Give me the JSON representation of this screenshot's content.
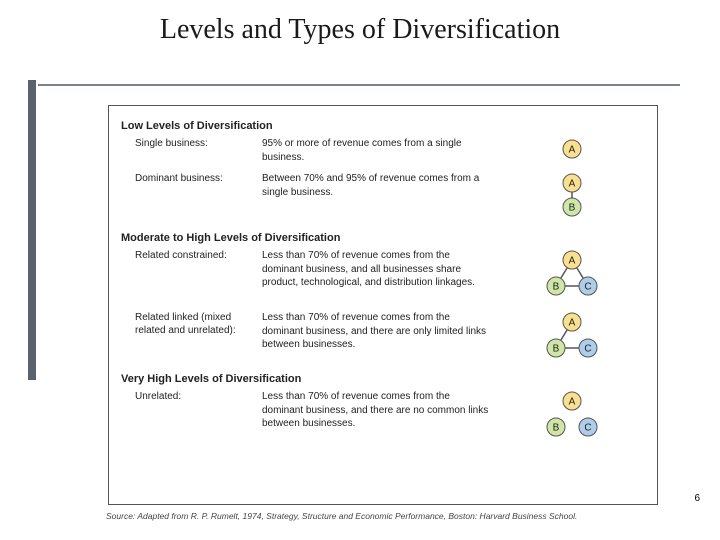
{
  "title": "Levels and Types of Diversification",
  "page_number": "6",
  "source": "Source: Adapted from R. P. Rumelt, 1974, Strategy, Structure and Economic Performance, Boston: Harvard Business School.",
  "theme": {
    "rail_color": "#5a6270",
    "rule_color": "#7a8491",
    "node_stroke": "#555555",
    "edge_color": "#555555",
    "fill_A": "#f9e08e",
    "fill_B": "#cfe6a6",
    "fill_C": "#aecde8",
    "text_color": "#222222"
  },
  "sections": [
    {
      "heading": "Low Levels of Diversification",
      "rows": [
        {
          "label": "Single business:",
          "desc": "95% or more of revenue comes from a single business.",
          "diagram": {
            "nodes": [
              {
                "id": "A",
                "x": 20,
                "y": 12,
                "r": 9,
                "fill": "#f9e08e"
              }
            ],
            "edges": []
          }
        },
        {
          "label": "Dominant business:",
          "desc": "Between 70% and 95% of revenue comes from a single business.",
          "diagram": {
            "nodes": [
              {
                "id": "A",
                "x": 20,
                "y": 10,
                "r": 9,
                "fill": "#f9e08e"
              },
              {
                "id": "B",
                "x": 20,
                "y": 34,
                "r": 9,
                "fill": "#cfe6a6"
              }
            ],
            "edges": [
              {
                "from": "A",
                "to": "B"
              }
            ]
          }
        }
      ]
    },
    {
      "heading": "Moderate to High Levels of Diversification",
      "rows": [
        {
          "label": "Related constrained:",
          "desc": "Less than 70% of revenue comes from the dominant business, and all businesses share product, technological, and distribution linkages.",
          "diagram": {
            "nodes": [
              {
                "id": "A",
                "x": 30,
                "y": 10,
                "r": 9,
                "fill": "#f9e08e"
              },
              {
                "id": "B",
                "x": 14,
                "y": 36,
                "r": 9,
                "fill": "#cfe6a6"
              },
              {
                "id": "C",
                "x": 46,
                "y": 36,
                "r": 9,
                "fill": "#aecde8"
              }
            ],
            "edges": [
              {
                "from": "A",
                "to": "B"
              },
              {
                "from": "A",
                "to": "C"
              },
              {
                "from": "B",
                "to": "C"
              }
            ]
          }
        },
        {
          "label": "Related linked (mixed related and unrelated):",
          "desc": "Less than 70% of revenue comes from the dominant business, and there are only limited links between businesses.",
          "diagram": {
            "nodes": [
              {
                "id": "A",
                "x": 30,
                "y": 10,
                "r": 9,
                "fill": "#f9e08e"
              },
              {
                "id": "B",
                "x": 14,
                "y": 36,
                "r": 9,
                "fill": "#cfe6a6"
              },
              {
                "id": "C",
                "x": 46,
                "y": 36,
                "r": 9,
                "fill": "#aecde8"
              }
            ],
            "edges": [
              {
                "from": "A",
                "to": "B"
              },
              {
                "from": "B",
                "to": "C"
              }
            ]
          }
        }
      ]
    },
    {
      "heading": "Very High Levels of Diversification",
      "rows": [
        {
          "label": "Unrelated:",
          "desc": "Less than 70% of revenue comes from the dominant business, and there are no common links between businesses.",
          "diagram": {
            "nodes": [
              {
                "id": "A",
                "x": 30,
                "y": 10,
                "r": 9,
                "fill": "#f9e08e"
              },
              {
                "id": "B",
                "x": 14,
                "y": 36,
                "r": 9,
                "fill": "#cfe6a6"
              },
              {
                "id": "C",
                "x": 46,
                "y": 36,
                "r": 9,
                "fill": "#aecde8"
              }
            ],
            "edges": []
          }
        }
      ]
    }
  ]
}
